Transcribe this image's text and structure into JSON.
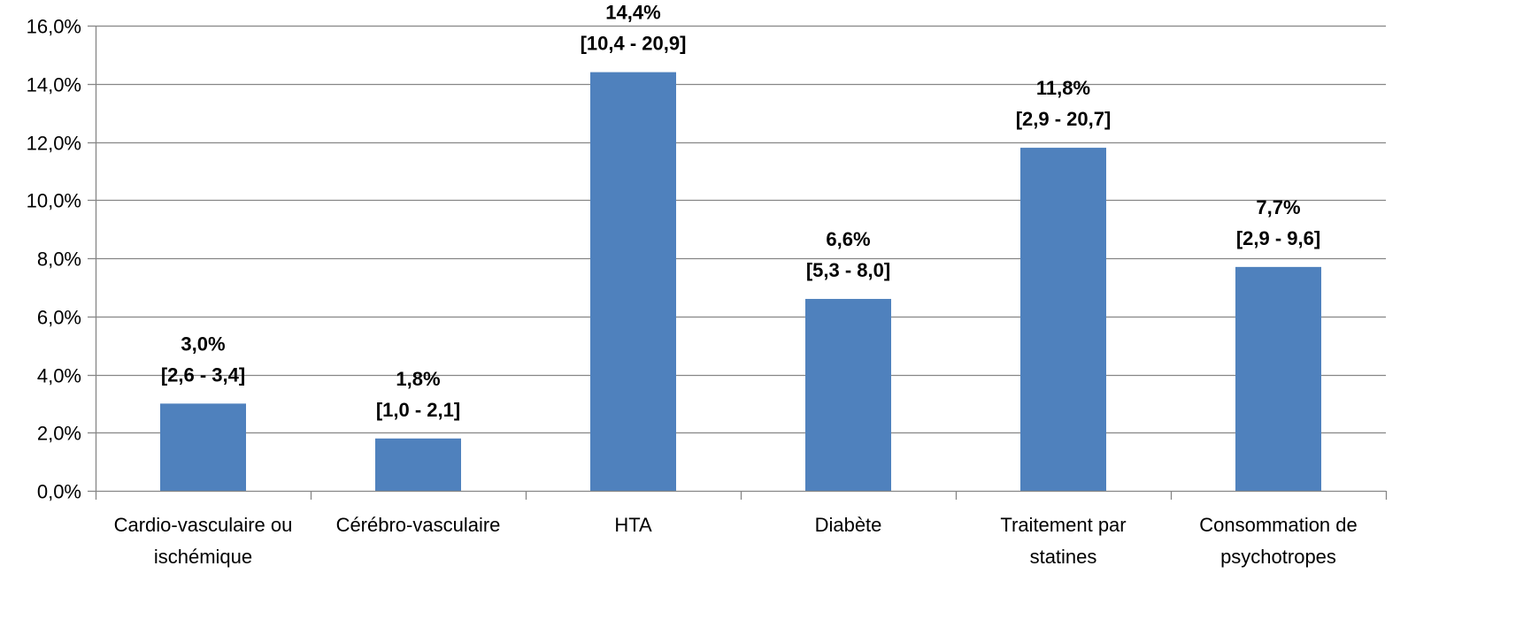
{
  "chart_data": {
    "type": "bar",
    "categories": [
      [
        "Cardio-vasculaire ou",
        "ischémique"
      ],
      [
        "Cérébro-vasculaire"
      ],
      [
        "HTA"
      ],
      [
        "Diabète"
      ],
      [
        "Traitement par",
        "statines"
      ],
      [
        "Consommation de",
        "psychotropes"
      ]
    ],
    "values": [
      3.0,
      1.8,
      14.4,
      6.6,
      11.8,
      7.7
    ],
    "value_labels": [
      "3,0%",
      "1,8%",
      "14,4%",
      "6,6%",
      "11,8%",
      "7,7%"
    ],
    "interval_labels": [
      "[2,6 - 3,4]",
      "[1,0 - 2,1]",
      "[10,4 - 20,9]",
      "[5,3 - 8,0]",
      "[2,9 - 20,7]",
      "[2,9 - 9,6]"
    ],
    "y_ticks": [
      "0,0%",
      "2,0%",
      "4,0%",
      "6,0%",
      "8,0%",
      "10,0%",
      "12,0%",
      "14,0%",
      "16,0%"
    ],
    "ylim": [
      0,
      16
    ],
    "grid": true,
    "legend": "none",
    "bar_color": "#4F81BD",
    "grid_color": "#868686"
  }
}
